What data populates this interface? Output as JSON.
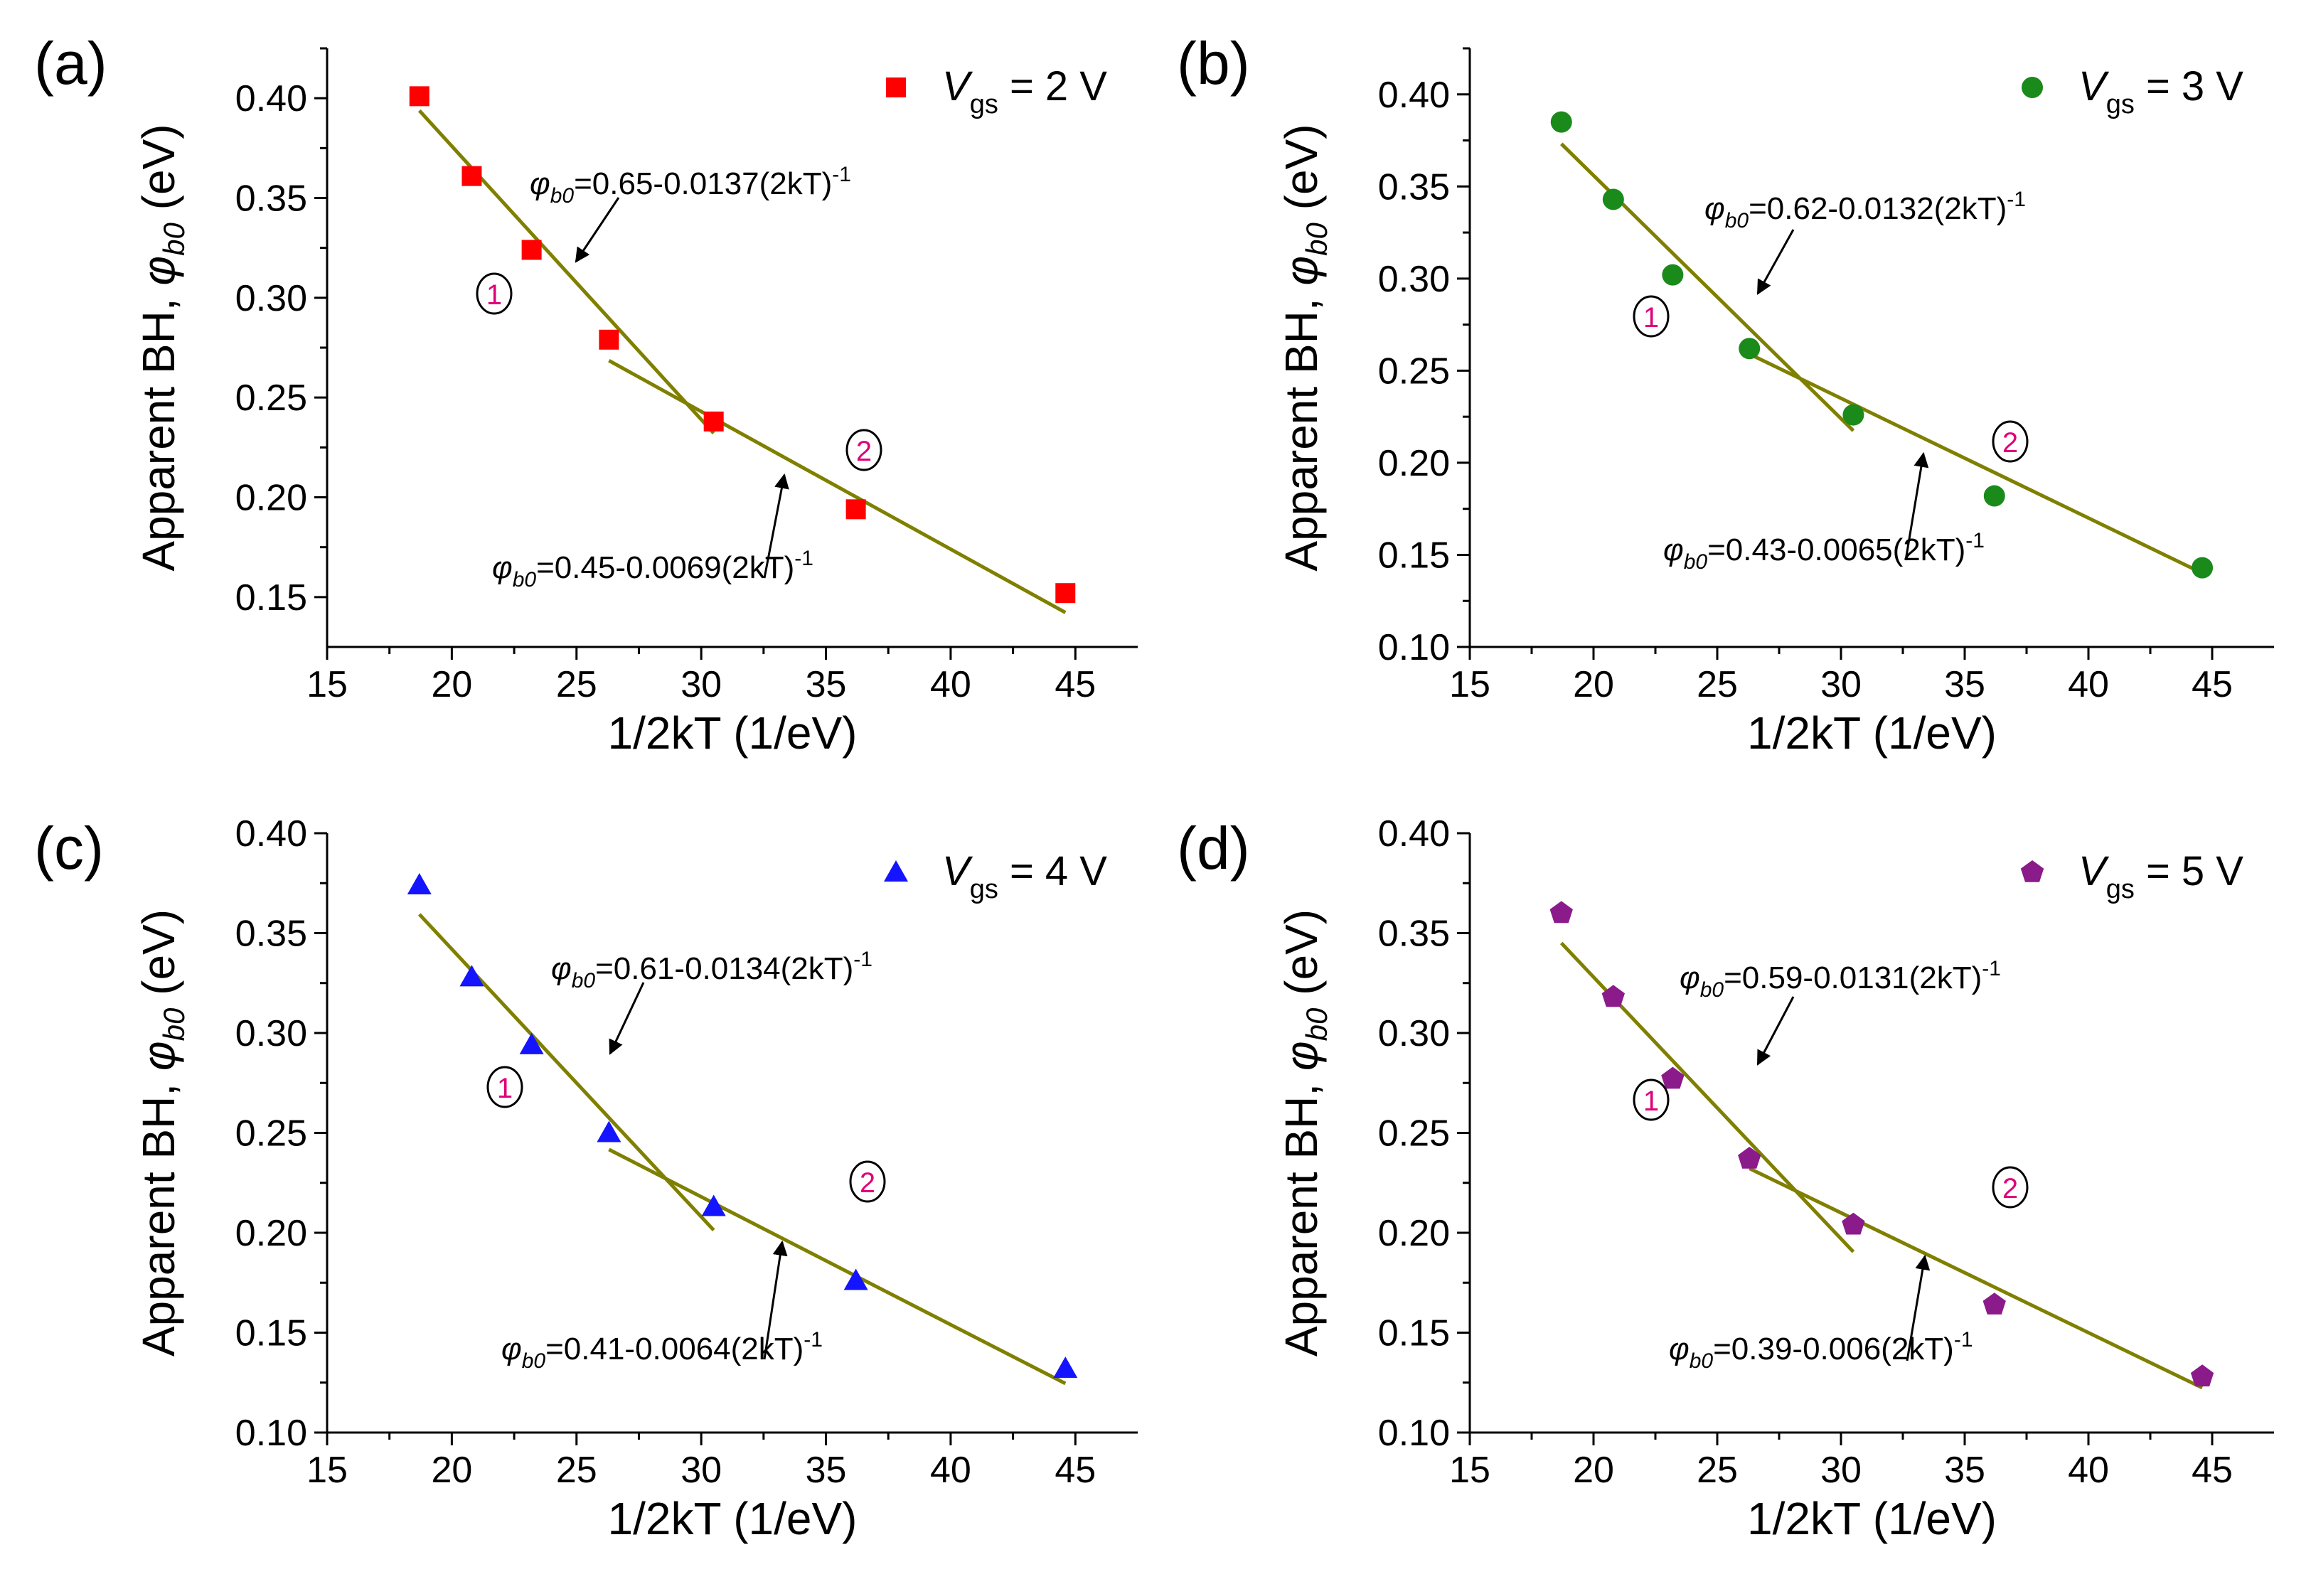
{
  "colors": {
    "fit_line": "#7f7f00",
    "annotation_number": "#e0007a",
    "axis": "#000000"
  },
  "chart_data": [
    {
      "panel_label": "(a)",
      "type": "scatter",
      "marker": "square",
      "marker_color": "#ff0000",
      "legend": {
        "prefix": "V",
        "subscript": "gs",
        "suffix": " = 2 V"
      },
      "x": [
        18.7,
        20.8,
        23.2,
        26.3,
        30.5,
        36.2,
        44.6
      ],
      "y": [
        0.401,
        0.361,
        0.324,
        0.279,
        0.238,
        0.194,
        0.152
      ],
      "xlabel": "1/2kT (1/eV)",
      "ylabel_text": "Apparent BH, ",
      "ylabel_symbol": "φ",
      "ylabel_sub": "b0",
      "ylabel_unit": " (eV)",
      "xlim": [
        15,
        47.5
      ],
      "ylim": [
        0.125,
        0.425
      ],
      "xticks": [
        15,
        20,
        25,
        30,
        35,
        40,
        45
      ],
      "yticks": [
        0.15,
        0.2,
        0.25,
        0.3,
        0.35,
        0.4
      ],
      "ytick_labels": [
        "0.15",
        "0.20",
        "0.25",
        "0.30",
        "0.35",
        "0.40"
      ],
      "fits": [
        {
          "id": "1",
          "intercept": 0.65,
          "slope": -0.0137,
          "xrange": [
            18.7,
            30.5
          ],
          "eq": "=0.65-0.0137(2kT)",
          "eq_sup": "-1"
        },
        {
          "id": "2",
          "intercept": 0.45,
          "slope": -0.0069,
          "xrange": [
            26.3,
            44.6
          ],
          "eq": "=0.45-0.0069(2kT)",
          "eq_sup": "-1"
        }
      ]
    },
    {
      "panel_label": "(b)",
      "type": "scatter",
      "marker": "circle",
      "marker_color": "#1a8a1a",
      "legend": {
        "prefix": "V",
        "subscript": "gs",
        "suffix": " = 3 V"
      },
      "x": [
        18.7,
        20.8,
        23.2,
        26.3,
        30.5,
        36.2,
        44.6
      ],
      "y": [
        0.385,
        0.343,
        0.302,
        0.262,
        0.226,
        0.182,
        0.143
      ],
      "xlabel": "1/2kT (1/eV)",
      "ylabel_text": "Apparent BH, ",
      "ylabel_symbol": "φ",
      "ylabel_sub": "b0",
      "ylabel_unit": " (eV)",
      "xlim": [
        15,
        47.5
      ],
      "ylim": [
        0.1,
        0.425
      ],
      "xticks": [
        15,
        20,
        25,
        30,
        35,
        40,
        45
      ],
      "yticks": [
        0.1,
        0.15,
        0.2,
        0.25,
        0.3,
        0.35,
        0.4
      ],
      "ytick_labels": [
        "0.10",
        "0.15",
        "0.20",
        "0.25",
        "0.30",
        "0.35",
        "0.40"
      ],
      "fits": [
        {
          "id": "1",
          "intercept": 0.62,
          "slope": -0.0132,
          "xrange": [
            18.7,
            30.5
          ],
          "eq": "=0.62-0.0132(2kT)",
          "eq_sup": "-1"
        },
        {
          "id": "2",
          "intercept": 0.43,
          "slope": -0.0065,
          "xrange": [
            26.3,
            44.6
          ],
          "eq": "=0.43-0.0065(2kT)",
          "eq_sup": "-1"
        }
      ]
    },
    {
      "panel_label": "(c)",
      "type": "scatter",
      "marker": "triangle",
      "marker_color": "#1414ff",
      "legend": {
        "prefix": "V",
        "subscript": "gs",
        "suffix": " = 4 V"
      },
      "x": [
        18.7,
        20.8,
        23.2,
        26.3,
        30.5,
        36.2,
        44.6
      ],
      "y": [
        0.374,
        0.328,
        0.294,
        0.25,
        0.213,
        0.176,
        0.132
      ],
      "xlabel": "1/2kT (1/eV)",
      "ylabel_text": "Apparent BH, ",
      "ylabel_symbol": "φ",
      "ylabel_sub": "b0",
      "ylabel_unit": " (eV)",
      "xlim": [
        15,
        47.5
      ],
      "ylim": [
        0.1,
        0.4
      ],
      "xticks": [
        15,
        20,
        25,
        30,
        35,
        40,
        45
      ],
      "yticks": [
        0.1,
        0.15,
        0.2,
        0.25,
        0.3,
        0.35,
        0.4
      ],
      "ytick_labels": [
        "0.10",
        "0.15",
        "0.20",
        "0.25",
        "0.30",
        "0.35",
        "0.40"
      ],
      "fits": [
        {
          "id": "1",
          "intercept": 0.61,
          "slope": -0.0134,
          "xrange": [
            18.7,
            30.5
          ],
          "eq": "=0.61-0.0134(2kT)",
          "eq_sup": "-1"
        },
        {
          "id": "2",
          "intercept": 0.41,
          "slope": -0.0064,
          "xrange": [
            26.3,
            44.6
          ],
          "eq": "=0.41-0.0064(2kT)",
          "eq_sup": "-1"
        }
      ]
    },
    {
      "panel_label": "(d)",
      "type": "scatter",
      "marker": "pentagon",
      "marker_color": "#8b1a8b",
      "legend": {
        "prefix": "V",
        "subscript": "gs",
        "suffix": " = 5 V"
      },
      "x": [
        18.7,
        20.8,
        23.2,
        26.3,
        30.5,
        36.2,
        44.6
      ],
      "y": [
        0.36,
        0.318,
        0.277,
        0.237,
        0.204,
        0.164,
        0.128
      ],
      "xlabel": "1/2kT (1/eV)",
      "ylabel_text": "Apparent BH, ",
      "ylabel_symbol": "φ",
      "ylabel_sub": "b0",
      "ylabel_unit": " (eV)",
      "xlim": [
        15,
        47.5
      ],
      "ylim": [
        0.1,
        0.4
      ],
      "xticks": [
        15,
        20,
        25,
        30,
        35,
        40,
        45
      ],
      "yticks": [
        0.1,
        0.15,
        0.2,
        0.25,
        0.3,
        0.35,
        0.4
      ],
      "ytick_labels": [
        "0.10",
        "0.15",
        "0.20",
        "0.25",
        "0.30",
        "0.35",
        "0.40"
      ],
      "fits": [
        {
          "id": "1",
          "intercept": 0.59,
          "slope": -0.0131,
          "xrange": [
            18.7,
            30.5
          ],
          "eq": "=0.59-0.0131(2kT)",
          "eq_sup": "-1"
        },
        {
          "id": "2",
          "intercept": 0.39,
          "slope": -0.006,
          "xrange": [
            26.3,
            44.6
          ],
          "eq": "=0.39-0.006(2kT)",
          "eq_sup": "-1"
        }
      ]
    }
  ]
}
